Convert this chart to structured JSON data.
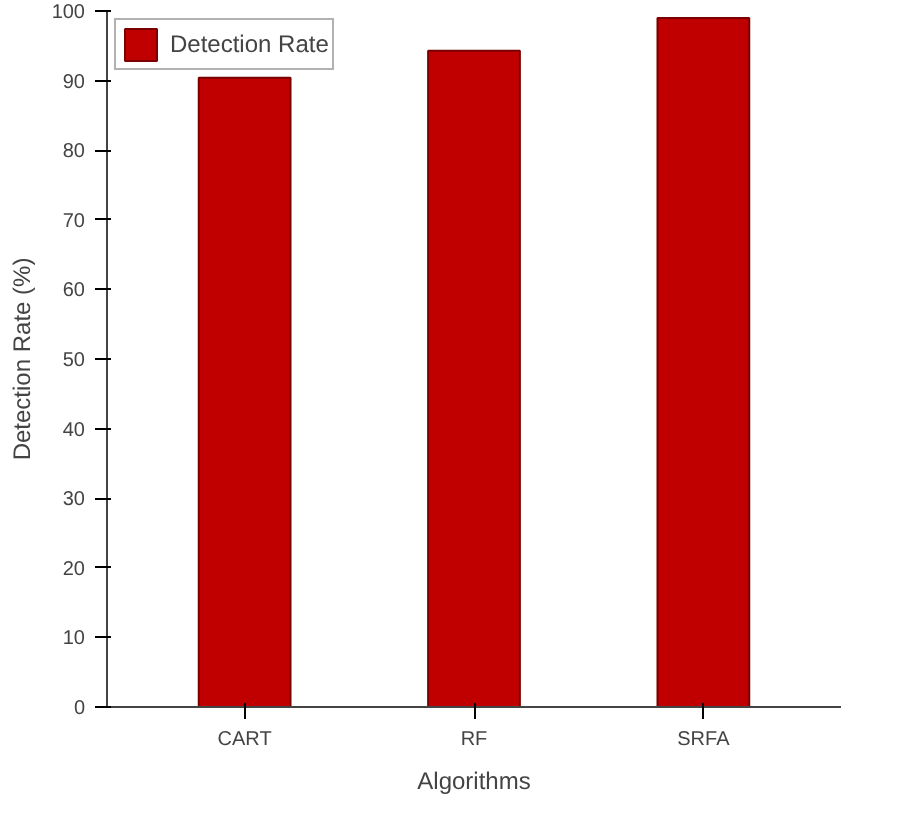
{
  "chart_data": {
    "type": "bar",
    "categories": [
      "CART",
      "RF",
      "SRFA"
    ],
    "series": [
      {
        "name": "Detection Rate",
        "color": "#c00000",
        "values": [
          90.4,
          94.3,
          99.0
        ]
      }
    ],
    "xlabel": "Algorithms",
    "ylabel": "Detection Rate (%)",
    "ylim": [
      0,
      100
    ],
    "yticks": [
      0,
      10,
      20,
      30,
      40,
      50,
      60,
      70,
      80,
      90,
      100
    ],
    "grid": false,
    "legend": "top left"
  }
}
